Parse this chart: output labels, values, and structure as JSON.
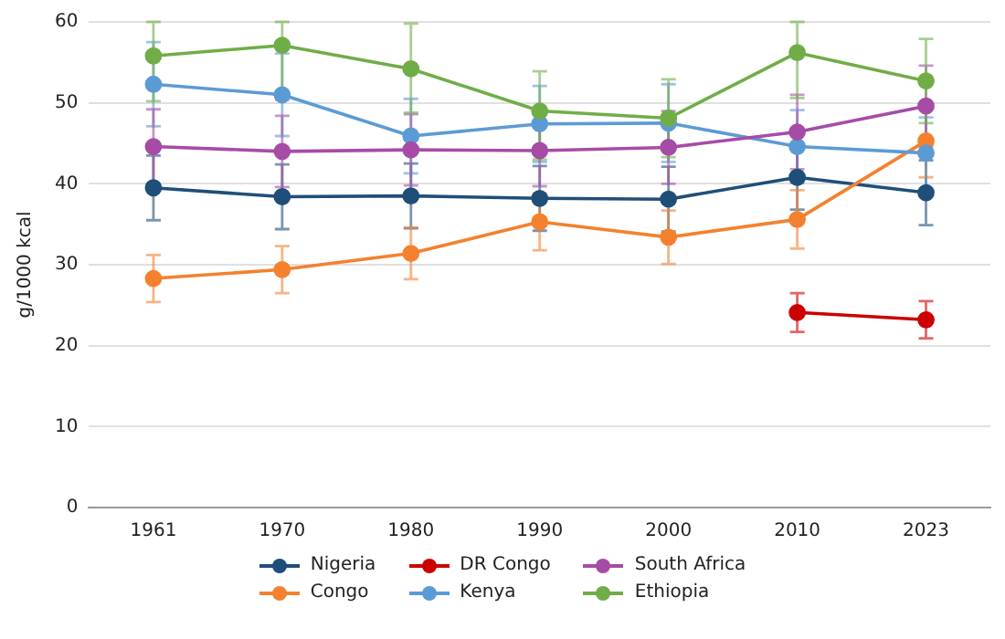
{
  "chart_data": {
    "type": "line",
    "ylabel": "g/1000 kcal",
    "categories": [
      "1961",
      "1970",
      "1980",
      "1990",
      "2000",
      "2010",
      "2023"
    ],
    "ylim": [
      0,
      60
    ],
    "yticks": [
      0,
      10,
      20,
      30,
      40,
      50,
      60
    ],
    "grid": "y",
    "legend": "bottom",
    "marker": "circle",
    "line_style": "solid",
    "series": [
      {
        "name": "Nigeria",
        "color": "#1f4e79",
        "values": [
          39.5,
          38.4,
          38.5,
          38.2,
          38.1,
          40.8,
          38.9
        ],
        "errors": [
          4,
          4,
          4,
          4,
          4,
          4,
          4
        ]
      },
      {
        "name": "Congo",
        "color": "#f4812e",
        "values": [
          28.3,
          29.4,
          31.4,
          35.3,
          33.4,
          35.6,
          45.3
        ],
        "errors": [
          2.9,
          2.9,
          3.2,
          3.5,
          3.3,
          3.6,
          4.5
        ]
      },
      {
        "name": "DR Congo",
        "color": "#cc0000",
        "values": [
          null,
          null,
          null,
          null,
          null,
          24.1,
          23.2
        ],
        "errors": [
          null,
          null,
          null,
          null,
          null,
          2.4,
          2.3
        ]
      },
      {
        "name": "Kenya",
        "color": "#5b9bd5",
        "values": [
          52.3,
          51.0,
          45.9,
          47.4,
          47.5,
          44.6,
          43.8
        ],
        "errors": [
          5.2,
          5.1,
          4.6,
          4.7,
          4.8,
          4.5,
          4.4
        ]
      },
      {
        "name": "South Africa",
        "color": "#a64ca6",
        "values": [
          44.6,
          44.0,
          44.2,
          44.1,
          44.5,
          46.4,
          49.6
        ],
        "errors": [
          4.6,
          4.4,
          4.4,
          4.4,
          4.5,
          4.6,
          5
        ]
      },
      {
        "name": "Ethiopia",
        "color": "#70ad47",
        "values": [
          55.8,
          57.1,
          54.2,
          49.0,
          48.1,
          56.2,
          52.7
        ],
        "errors": [
          [
            50.2,
            60
          ],
          [
            50.4,
            60
          ],
          [
            48.8,
            59.8
          ],
          [
            43.0,
            53.9
          ],
          [
            43.3,
            52.9
          ],
          [
            50.6,
            60
          ],
          [
            47.5,
            57.9
          ]
        ]
      }
    ]
  }
}
